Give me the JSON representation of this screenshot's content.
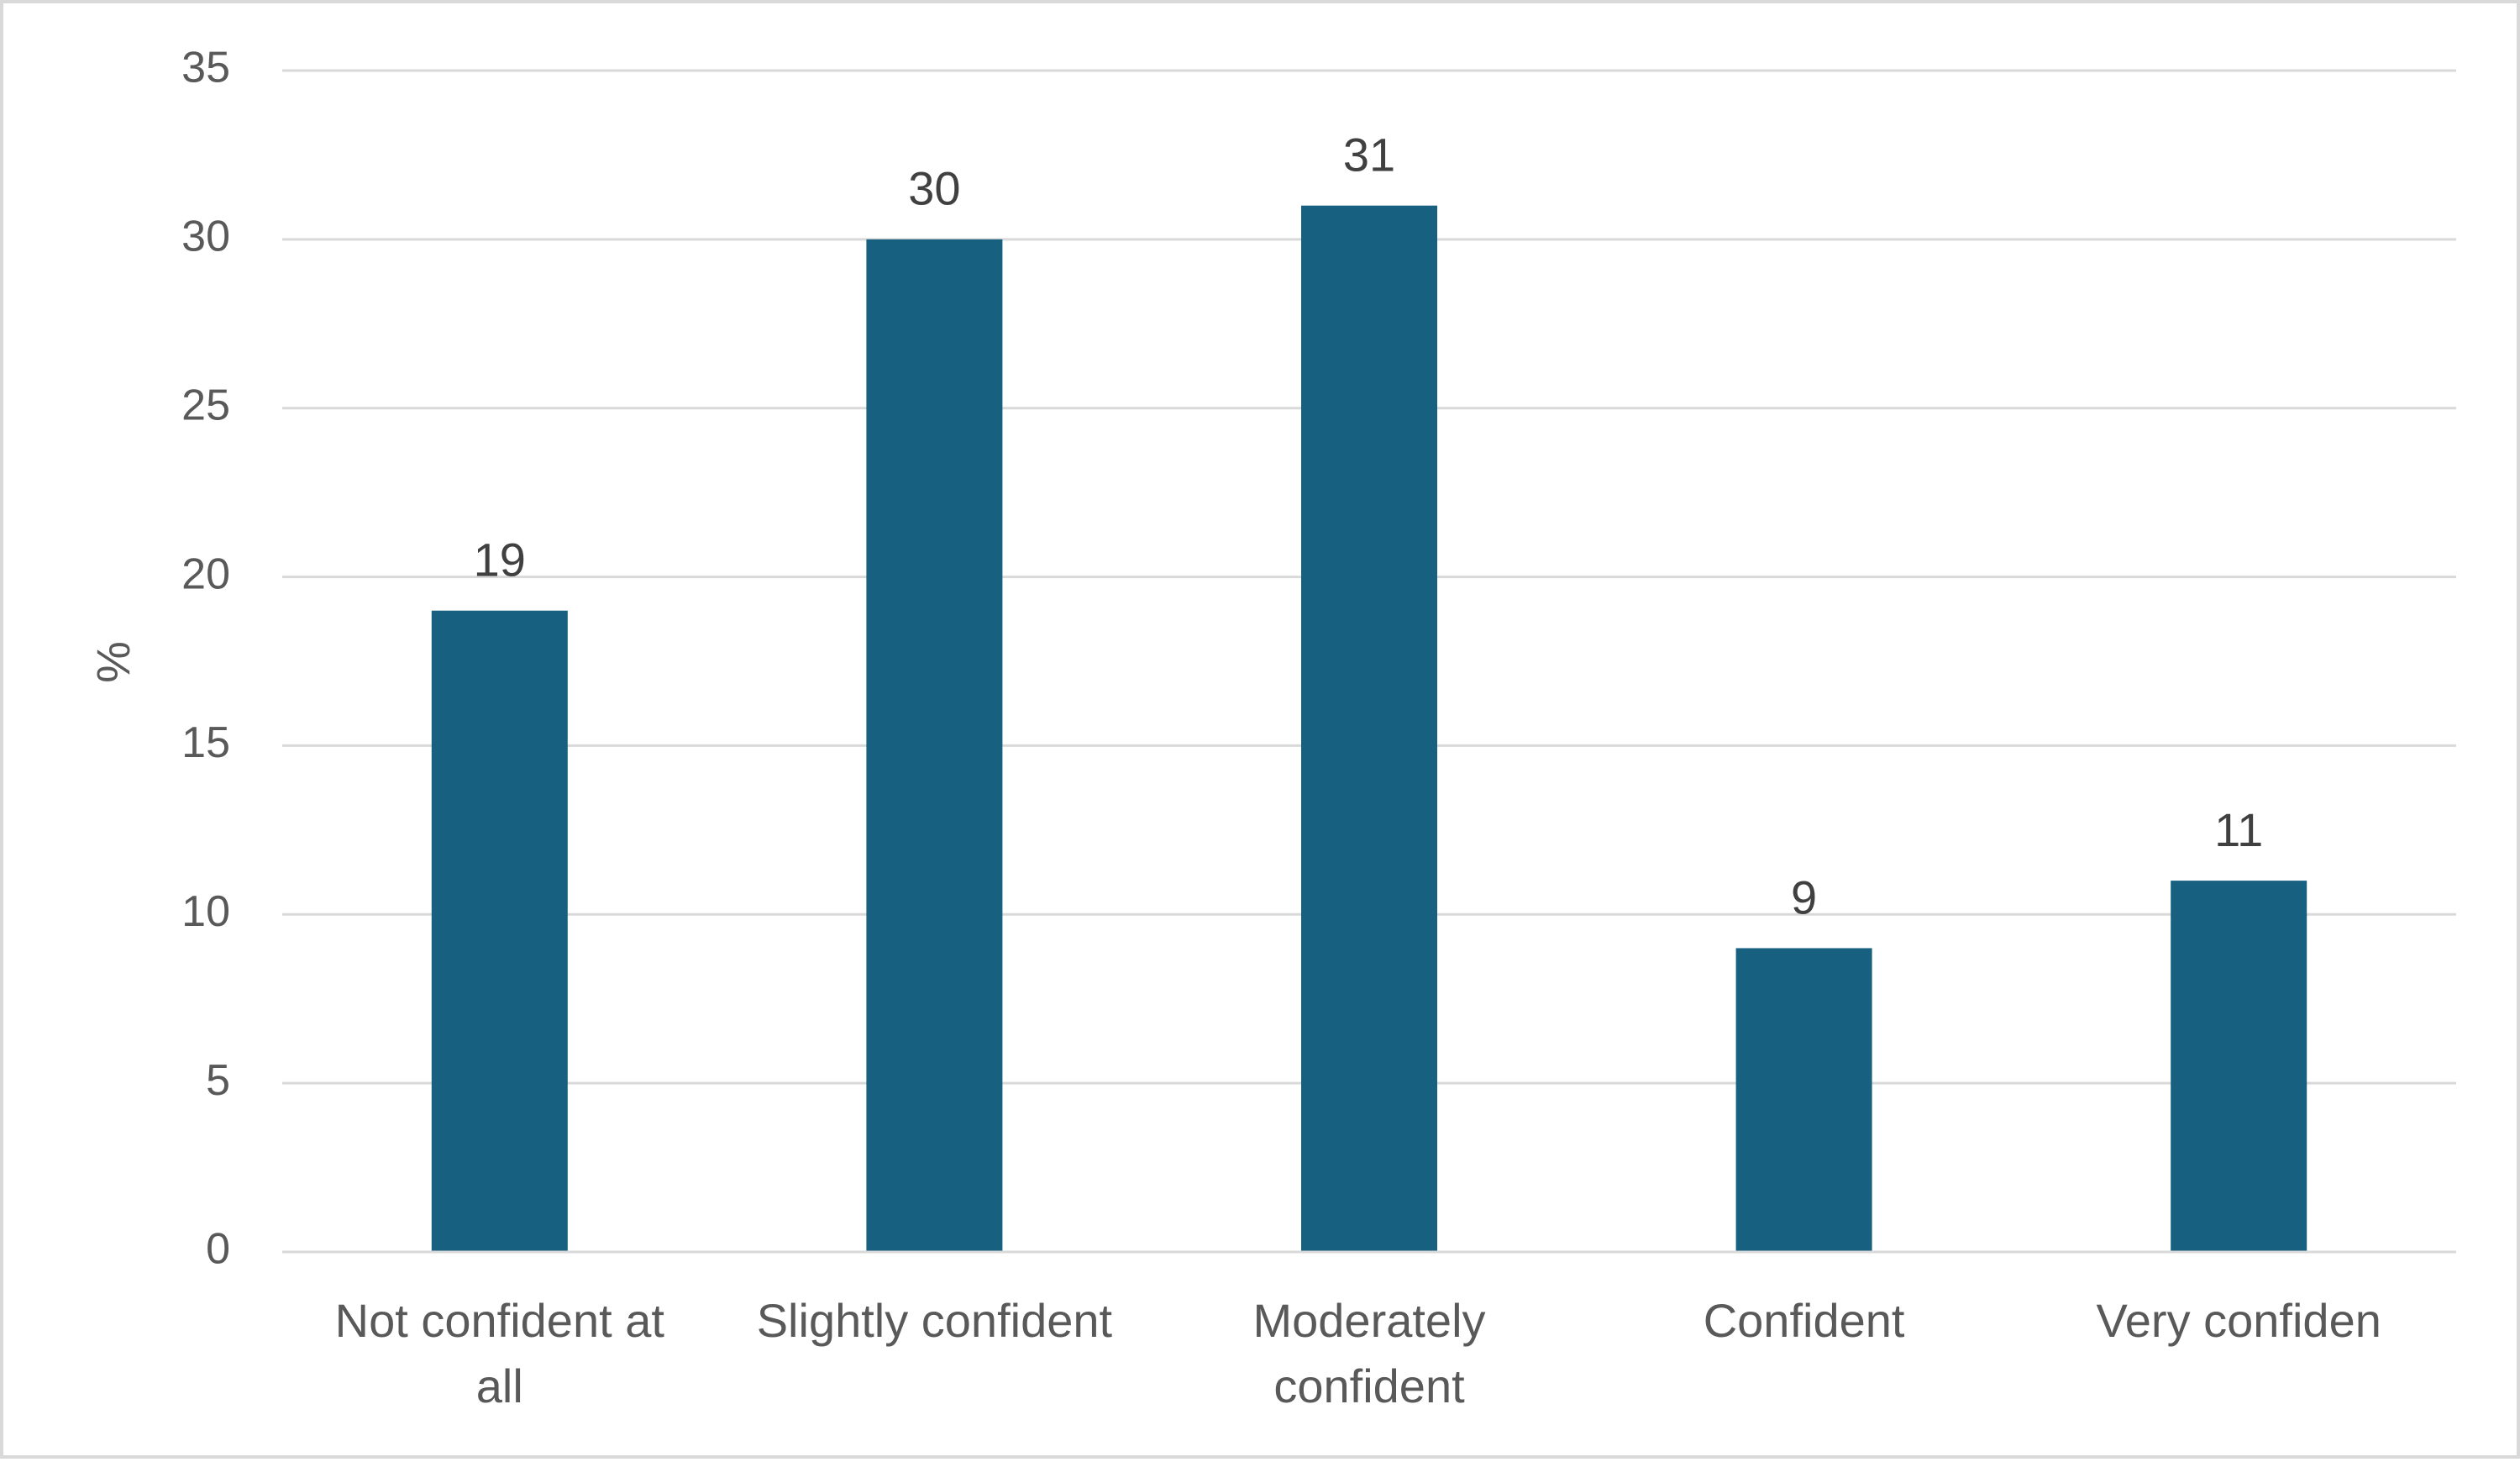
{
  "chart_data": {
    "type": "bar",
    "title": "",
    "xlabel": "",
    "ylabel": "%",
    "ylim": [
      0,
      35
    ],
    "yticks": [
      0,
      5,
      10,
      15,
      20,
      25,
      30,
      35
    ],
    "categories": [
      [
        "Not confident at",
        "all"
      ],
      [
        "Slightly confident"
      ],
      [
        "Moderately",
        "confident"
      ],
      [
        "Confident"
      ],
      [
        "Very confiden"
      ]
    ],
    "values": [
      19,
      30,
      31,
      9,
      11
    ],
    "data_labels": [
      "19",
      "30",
      "31",
      "9",
      "11"
    ],
    "grid": true,
    "legend": "none",
    "colors": {
      "bar": "#17607f",
      "grid": "#d9d9d9",
      "axis": "#d9d9d9"
    }
  }
}
